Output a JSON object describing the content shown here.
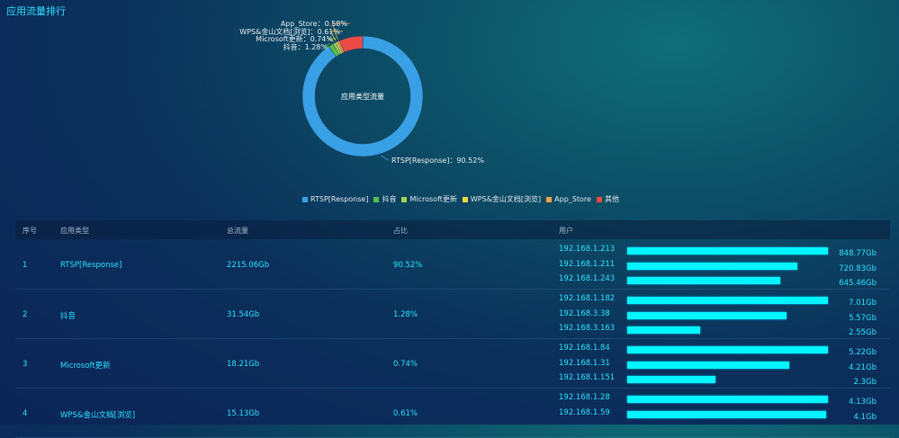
{
  "title": "应用流量排行",
  "chart_data": {
    "type": "pie",
    "center_label": "应用类型流量",
    "slices": [
      {
        "name": "RTSP[Response]",
        "value": 90.52,
        "label": "RTSP[Response]：90.52%",
        "color": "#3aa0e6"
      },
      {
        "name": "抖音",
        "value": 1.28,
        "label": "抖音：1.28%",
        "color": "#5cbb4e"
      },
      {
        "name": "Microsoft更新",
        "value": 0.74,
        "label": "Microsoft更新：0.74%",
        "color": "#a3d157"
      },
      {
        "name": "WPS&金山文档[浏览]",
        "value": 0.61,
        "label": "WPS&金山文档[浏览]：0.61%",
        "color": "#f1d548"
      },
      {
        "name": "App_Store",
        "value": 0.58,
        "label": "App_Store：0.58%",
        "color": "#f0a24a"
      },
      {
        "name": "其他",
        "value": 6.27,
        "label": "",
        "color": "#ee4a45"
      }
    ],
    "legend_position": "bottom"
  },
  "table": {
    "headers": [
      "序号",
      "应用类型",
      "总流量",
      "占比",
      "用户"
    ],
    "rows": [
      {
        "no": "1",
        "app": "RTSP[Response]",
        "total": "2215.06Gb",
        "pct": "90.52%",
        "users": [
          {
            "ip": "192.168.1.213",
            "value": "848.77Gb",
            "v": 848.77
          },
          {
            "ip": "192.168.1.211",
            "value": "720.83Gb",
            "v": 720.83
          },
          {
            "ip": "192.168.1.243",
            "value": "645.46Gb",
            "v": 645.46
          }
        ]
      },
      {
        "no": "2",
        "app": "抖音",
        "total": "31.54Gb",
        "pct": "1.28%",
        "users": [
          {
            "ip": "192.168.1.182",
            "value": "7.01Gb",
            "v": 7.01
          },
          {
            "ip": "192.168.3.38",
            "value": "5.57Gb",
            "v": 5.57
          },
          {
            "ip": "192.168.3.163",
            "value": "2.55Gb",
            "v": 2.55
          }
        ]
      },
      {
        "no": "3",
        "app": "Microsoft更新",
        "total": "18.21Gb",
        "pct": "0.74%",
        "users": [
          {
            "ip": "192.168.1.84",
            "value": "5.22Gb",
            "v": 5.22
          },
          {
            "ip": "192.168.1.31",
            "value": "4.21Gb",
            "v": 4.21
          },
          {
            "ip": "192.168.1.151",
            "value": "2.3Gb",
            "v": 2.3
          }
        ]
      },
      {
        "no": "4",
        "app": "WPS&金山文档[浏览]",
        "total": "15.13Gb",
        "pct": "0.61%",
        "users": [
          {
            "ip": "192.168.1.28",
            "value": "4.13Gb",
            "v": 4.13
          },
          {
            "ip": "192.168.1.59",
            "value": "4.1Gb",
            "v": 4.1
          }
        ]
      }
    ]
  }
}
